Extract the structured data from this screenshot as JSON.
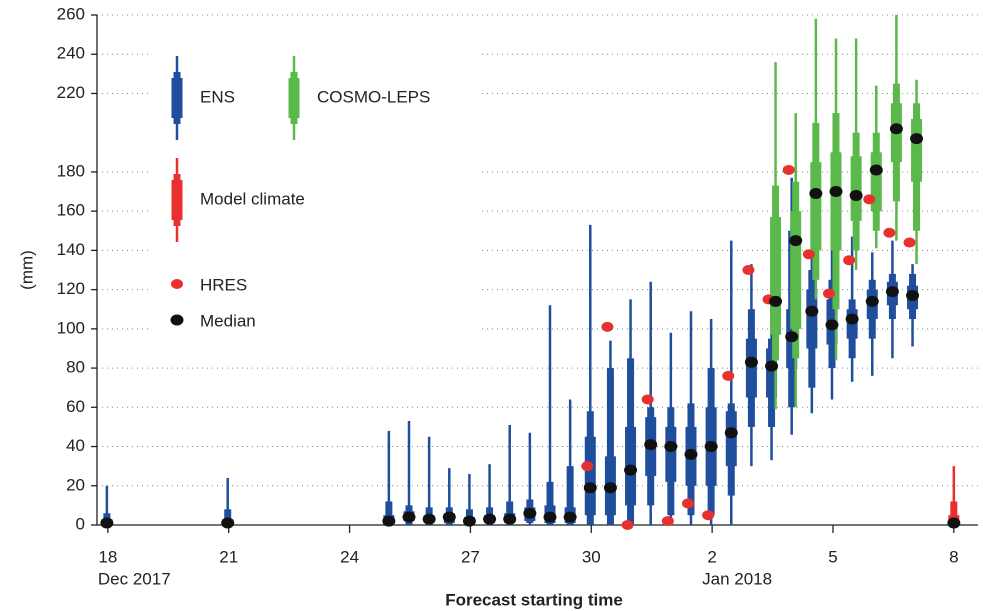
{
  "chart_data": {
    "type": "boxplot",
    "y_label": "(mm)",
    "x_label": "Forecast starting time",
    "xlim": [
      -0.27,
      21.6
    ],
    "ylim": [
      0,
      260
    ],
    "xticks": [
      {
        "value": 0,
        "label": "18"
      },
      {
        "value": 3,
        "label": "21"
      },
      {
        "value": 6,
        "label": "24"
      },
      {
        "value": 9,
        "label": "27"
      },
      {
        "value": 12,
        "label": "30"
      },
      {
        "value": 15,
        "label": "2"
      },
      {
        "value": 18,
        "label": "5"
      },
      {
        "value": 21,
        "label": "8"
      }
    ],
    "x_sublabels": [
      {
        "value": 0,
        "label": "Dec 2017"
      },
      {
        "value": 15,
        "label": "Jan 2018"
      }
    ],
    "yticks": [
      0,
      20,
      40,
      60,
      80,
      100,
      120,
      140,
      160,
      180,
      220,
      240,
      260
    ],
    "grid": true,
    "series": [
      {
        "name": "ENS",
        "color": "#1f4e9c",
        "x": [
          0,
          3,
          7,
          7.5,
          8,
          8.5,
          9,
          9.5,
          10,
          10.5,
          11,
          11.5,
          12,
          12.5,
          13,
          13.5,
          14,
          14.5,
          15,
          15.5,
          16,
          16.5,
          17,
          17.5,
          18,
          18.5,
          19,
          19.5,
          20
        ],
        "low": [
          0,
          0,
          0,
          0,
          0,
          0,
          0,
          0,
          0,
          0,
          0,
          0,
          0,
          0,
          0,
          0,
          0,
          0,
          0,
          0,
          30,
          33,
          46,
          57,
          64,
          73,
          76,
          85,
          91
        ],
        "q10": [
          0,
          0,
          0,
          0,
          0,
          0,
          0,
          0,
          0,
          1,
          0,
          0,
          0,
          0,
          0,
          10,
          5,
          5,
          5,
          15,
          50,
          50,
          60,
          70,
          80,
          85,
          95,
          105,
          105
        ],
        "q25": [
          0,
          0,
          1,
          2,
          1,
          1,
          0,
          1,
          1,
          2,
          1,
          1,
          5,
          5,
          10,
          25,
          22,
          20,
          20,
          30,
          65,
          65,
          80,
          90,
          92,
          95,
          105,
          112,
          110
        ],
        "median": [
          1,
          1,
          2,
          4,
          3,
          4,
          2,
          3,
          3,
          6,
          4,
          4,
          19,
          19,
          28,
          41,
          40,
          36,
          40,
          47,
          83,
          81,
          96,
          109,
          102,
          105,
          114,
          119,
          117
        ],
        "q75": [
          3,
          3,
          5,
          7,
          5,
          6,
          4,
          5,
          6,
          9,
          10,
          9,
          45,
          35,
          50,
          55,
          50,
          50,
          60,
          58,
          95,
          90,
          110,
          120,
          115,
          110,
          120,
          124,
          122
        ],
        "q90": [
          6,
          8,
          12,
          10,
          9,
          9,
          8,
          9,
          12,
          13,
          22,
          30,
          58,
          80,
          85,
          60,
          60,
          62,
          80,
          62,
          110,
          95,
          150,
          130,
          125,
          115,
          125,
          128,
          128
        ],
        "high": [
          20,
          24,
          48,
          53,
          45,
          29,
          26,
          31,
          51,
          47,
          112,
          64,
          153,
          94,
          115,
          124,
          98,
          109,
          105,
          145,
          133,
          121,
          177,
          150,
          149,
          147,
          139,
          145,
          133
        ]
      },
      {
        "name": "COSMO-LEPS",
        "color": "#5ab94a",
        "x": [
          16.5,
          17,
          17.5,
          18,
          18.5,
          19,
          19.5,
          20
        ],
        "low": [
          59,
          60,
          115,
          84,
          130,
          141,
          145,
          133
        ],
        "q10": [
          84,
          85,
          125,
          110,
          140,
          150,
          165,
          150
        ],
        "q25": [
          97,
          100,
          140,
          140,
          155,
          160,
          185,
          175
        ],
        "median": [
          114,
          145,
          169,
          170,
          168,
          181,
          202,
          197
        ],
        "q75": [
          157,
          160,
          185,
          190,
          188,
          190,
          215,
          207
        ],
        "q90": [
          173,
          175,
          205,
          210,
          200,
          200,
          225,
          215
        ],
        "high": [
          236,
          210,
          258,
          248,
          248,
          224,
          260,
          227
        ]
      },
      {
        "name": "Model climate",
        "color": "#e8302f",
        "x": [
          21
        ],
        "low": [
          0
        ],
        "q10": [
          0
        ],
        "q25": [
          2
        ],
        "median": [
          1
        ],
        "q75": [
          5
        ],
        "q90": [
          12
        ],
        "high": [
          30
        ]
      }
    ],
    "hres": {
      "name": "HRES",
      "color": "#e8302f",
      "x": [
        12,
        12.5,
        13,
        13.5,
        14,
        14.5,
        15,
        15.5,
        16,
        16.5,
        17,
        17.5,
        18,
        18.5,
        19,
        19.5,
        20
      ],
      "values": [
        30,
        101,
        0,
        64,
        2,
        11,
        5,
        76,
        130,
        115,
        181,
        138,
        118,
        135,
        166,
        149,
        144
      ]
    },
    "median_legend": {
      "name": "Median",
      "color": "#111111"
    }
  }
}
